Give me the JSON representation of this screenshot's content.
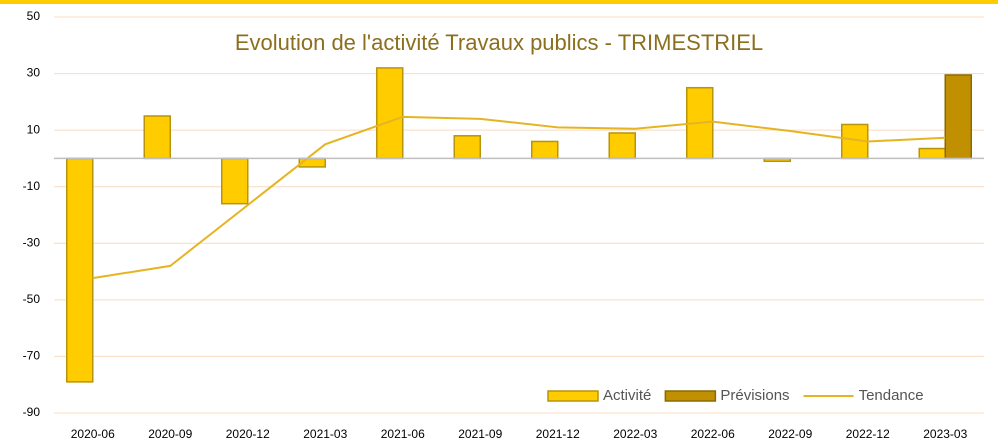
{
  "chart_data": {
    "type": "bar",
    "title": "Evolution de l'activité Travaux publics - TRIMESTRIEL",
    "categories": [
      "2020-06",
      "2020-09",
      "2020-12",
      "2021-03",
      "2021-06",
      "2021-09",
      "2021-12",
      "2022-03",
      "2022-06",
      "2022-09",
      "2022-12",
      "2023-03"
    ],
    "series": [
      {
        "name": "Activité",
        "type": "bar",
        "color": "#FFCC00",
        "values": [
          -79,
          15,
          -16,
          -3,
          32,
          8,
          6,
          9,
          25,
          -1,
          12,
          3.5
        ]
      },
      {
        "name": "Prévisions",
        "type": "bar",
        "color": "#C09000",
        "values": [
          null,
          null,
          null,
          null,
          null,
          null,
          null,
          null,
          null,
          null,
          null,
          29.5
        ]
      },
      {
        "name": "Tendance",
        "type": "line",
        "color": "#E6B422",
        "values": [
          -42.3,
          -38,
          -16.5,
          5,
          14.7,
          14,
          11,
          10.5,
          13,
          9.7,
          6,
          7.3
        ]
      }
    ],
    "ylim": [
      -90,
      50
    ],
    "yticks": [
      50,
      30,
      10,
      -10,
      -30,
      -50,
      -70,
      -90
    ],
    "grid": true,
    "legend": "bottom-right"
  }
}
